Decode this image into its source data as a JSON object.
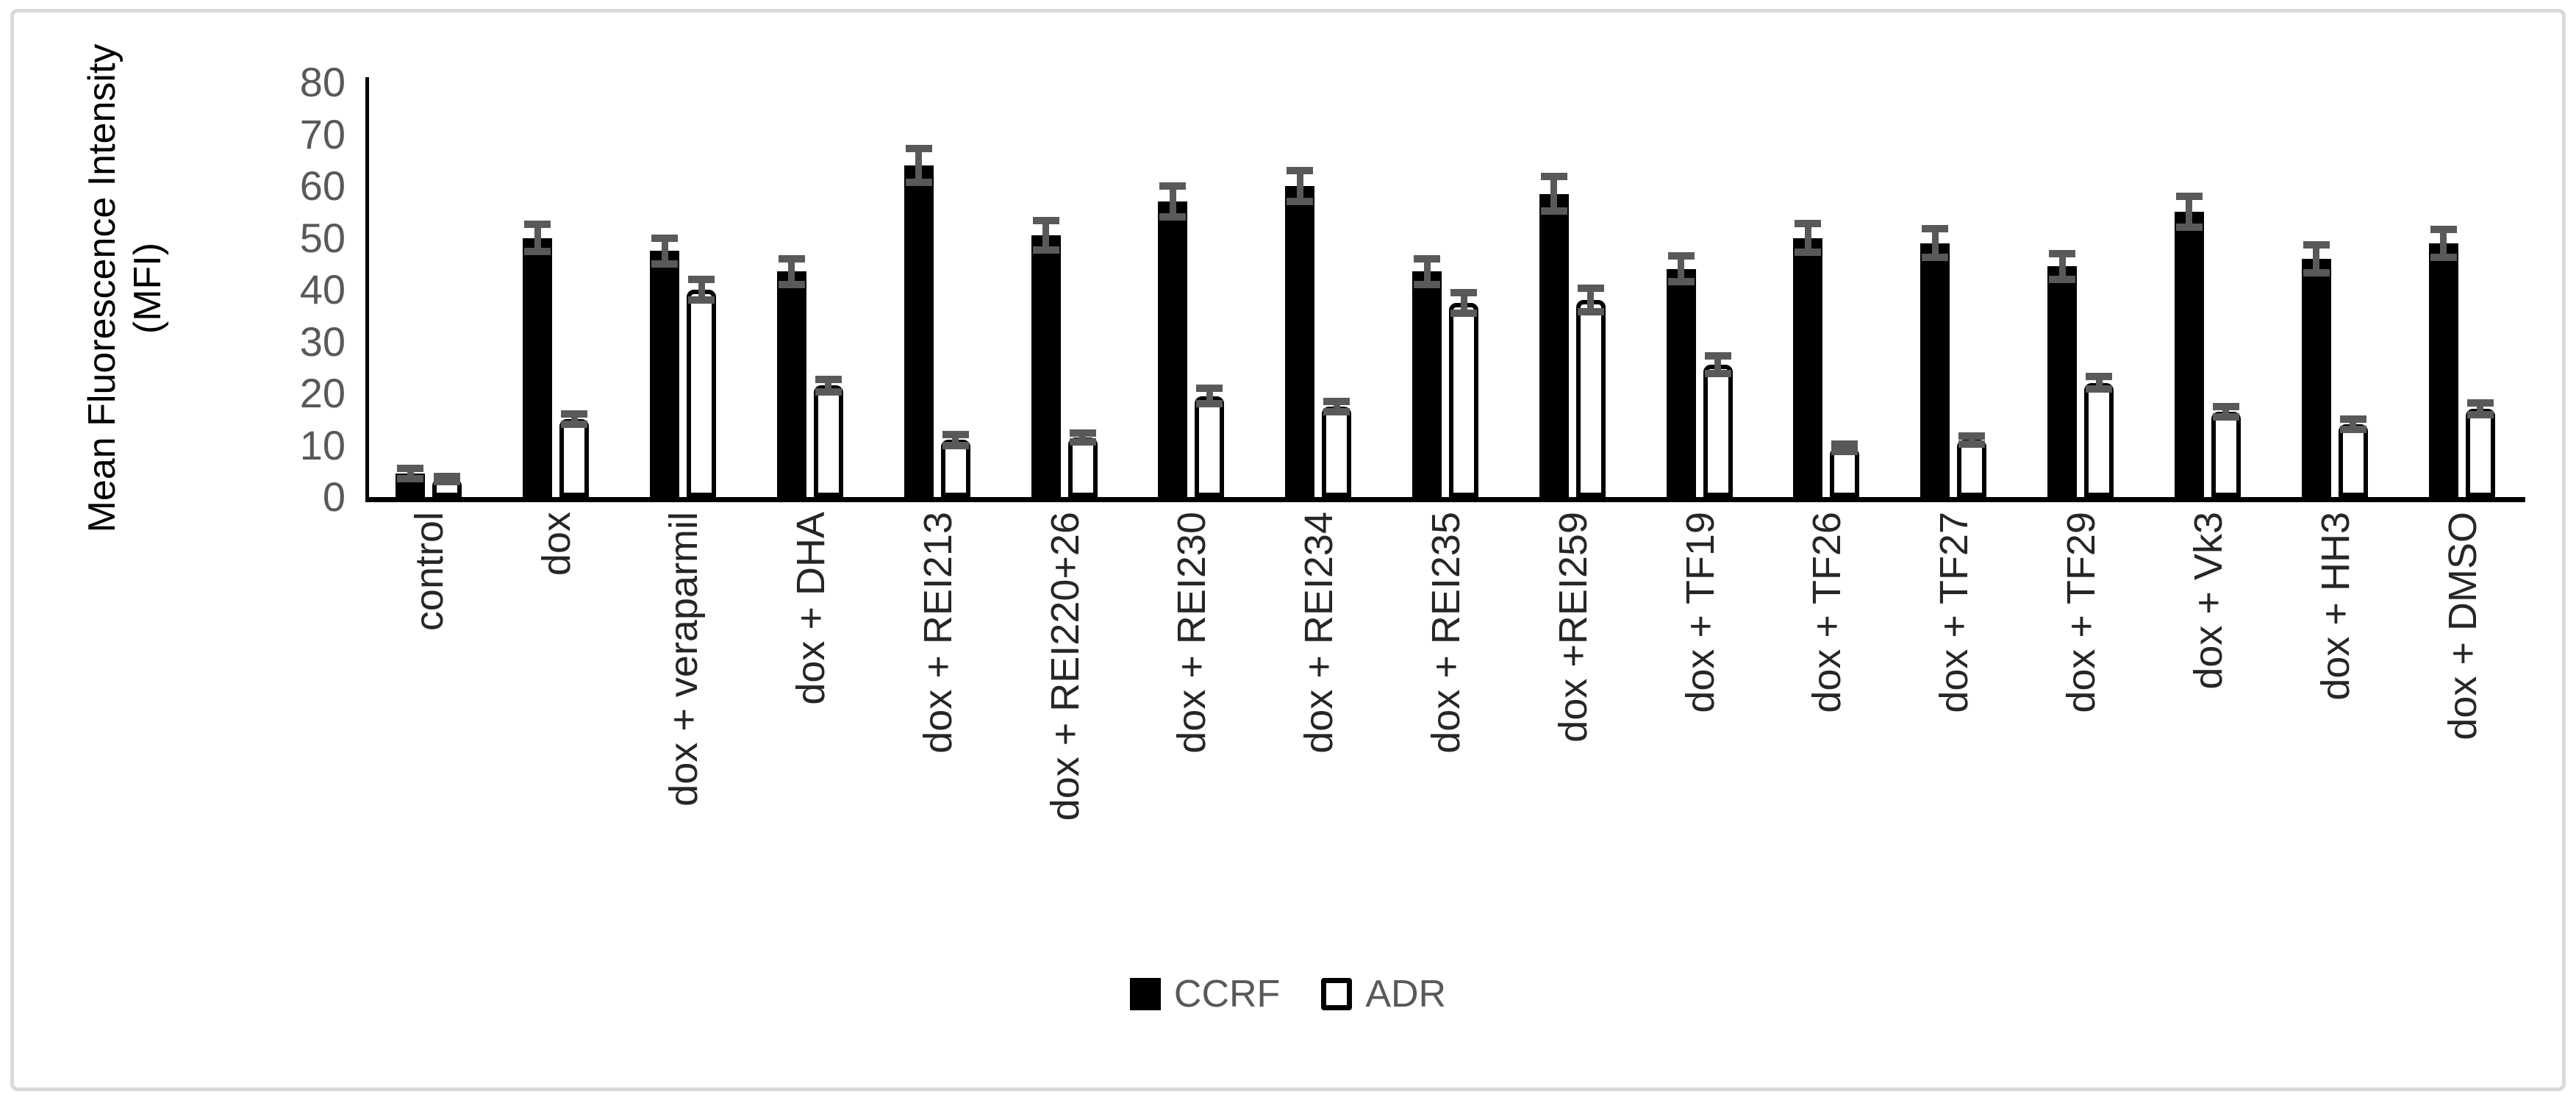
{
  "chart_data": {
    "type": "bar",
    "title": "",
    "ylabel_line1": "Mean Fluorescence Intensity",
    "ylabel_line2": "(MFI)",
    "xlabel": "",
    "ylim": [
      0,
      80
    ],
    "yticks": [
      0,
      10,
      20,
      30,
      40,
      50,
      60,
      70,
      80
    ],
    "grid": false,
    "legend_position": "bottom-center",
    "bar_error_bars": true,
    "error_bar_color": "#595959",
    "axis_color": "#000000",
    "tick_label_color": "#595959",
    "category_label_color": "#262626",
    "categories": [
      "control",
      "dox",
      "dox + veraparmil",
      "dox + DHA",
      "dox + REI213",
      "dox + REI220+26",
      "dox + REI230",
      "dox + REI234",
      "dox + REI235",
      "dox +REI259",
      "dox + TF19",
      "dox + TF26",
      "dox + TF27",
      "dox + TF29",
      "dox + Vk3",
      "dox + HH3",
      "dox + DMSO"
    ],
    "series": [
      {
        "name": "CCRF",
        "fill": "#000000",
        "values": [
          4.5,
          50,
          47.5,
          43.5,
          64,
          50.5,
          57,
          60,
          43.5,
          58.5,
          44,
          50,
          49,
          44.5,
          55,
          46,
          49
        ],
        "errors": [
          1,
          2.6,
          2.5,
          2.5,
          3.3,
          2.9,
          3,
          3,
          2.5,
          3.3,
          2.5,
          2.8,
          2.8,
          2.5,
          3,
          2.7,
          2.7
        ]
      },
      {
        "name": "ADR",
        "fill": "#ffffff",
        "border": "#000000",
        "values": [
          3.5,
          15,
          40,
          21.5,
          11,
          11.5,
          19.5,
          17.5,
          37.5,
          38,
          25.5,
          9.5,
          11,
          22,
          16.5,
          14,
          17
        ],
        "errors": [
          0.5,
          1,
          2,
          1.2,
          1,
          0.8,
          1.5,
          1,
          2,
          2.3,
          1.7,
          0.7,
          0.8,
          1.2,
          1,
          1,
          1.1
        ]
      }
    ]
  },
  "legend": {
    "items": [
      {
        "label": "CCRF"
      },
      {
        "label": "ADR"
      }
    ]
  },
  "frame": {
    "border_color": "#d9d9d9",
    "background": "#ffffff"
  }
}
